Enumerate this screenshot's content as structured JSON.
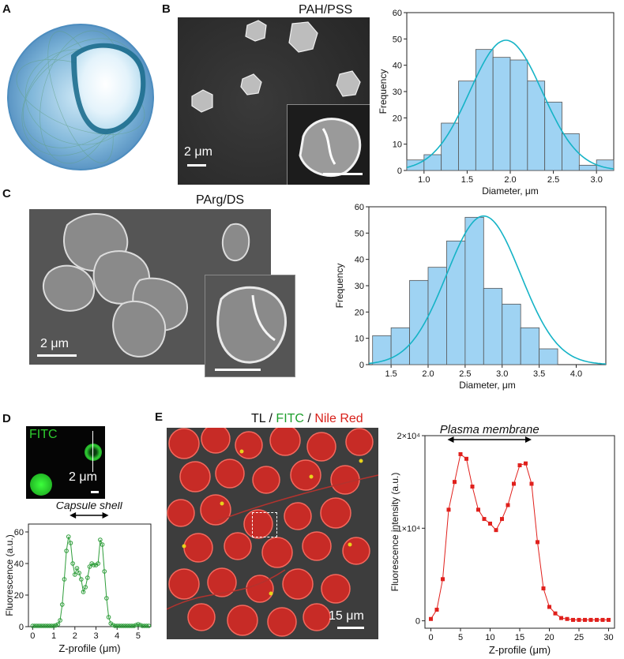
{
  "panels": {
    "A": {
      "letter": "A"
    },
    "B": {
      "letter": "B",
      "title": "PAH/PSS",
      "scale_label": "2 μm"
    },
    "C": {
      "letter": "C",
      "title": "PArg/DS",
      "scale_label": "2 μm"
    },
    "D": {
      "letter": "D",
      "channel_label": "FITC",
      "scale_label": "2 μm",
      "annotation": "Capsule shell"
    },
    "E": {
      "letter": "E",
      "scale_label": "15 μm",
      "annotation": "Plasma membrane",
      "channels": {
        "tl": "TL",
        "sep1": " / ",
        "fitc": "FITC",
        "sep2": " / ",
        "nile": "Nile Red"
      }
    }
  },
  "colors": {
    "bar_fill": "#9fd3f3",
    "fit_line": "#15b3c6",
    "green_profile": "#2e9d3a",
    "red_profile": "#e0201c"
  },
  "chart_data": [
    {
      "id": "hist_B",
      "type": "bar",
      "xlabel": "Diameter, μm",
      "ylabel": "Frequency",
      "xlim": [
        0.8,
        3.2
      ],
      "ylim": [
        0,
        60
      ],
      "xticks": [
        1.0,
        1.5,
        2.0,
        2.5,
        3.0
      ],
      "yticks": [
        0,
        10,
        20,
        30,
        40,
        50,
        60
      ],
      "bin_edges": [
        0.8,
        1.0,
        1.2,
        1.4,
        1.6,
        1.8,
        2.0,
        2.2,
        2.4,
        2.6,
        2.8,
        3.0,
        3.2
      ],
      "values": [
        4,
        6,
        18,
        34,
        46,
        43,
        42,
        34,
        26,
        14,
        2,
        4
      ],
      "fit": {
        "type": "gaussian",
        "mean": 1.95,
        "sd": 0.42,
        "peak": 49.5
      }
    },
    {
      "id": "hist_C",
      "type": "bar",
      "xlabel": "Diameter, μm",
      "ylabel": "Frequency",
      "xlim": [
        1.2,
        4.4
      ],
      "ylim": [
        0,
        60
      ],
      "xticks": [
        1.5,
        2.0,
        2.5,
        3.0,
        3.5,
        4.0
      ],
      "yticks": [
        0,
        10,
        20,
        30,
        40,
        50,
        60
      ],
      "bin_edges": [
        1.25,
        1.5,
        1.75,
        2.0,
        2.25,
        2.5,
        2.75,
        3.0,
        3.25,
        3.5,
        3.75,
        4.0,
        4.25
      ],
      "values": [
        11,
        14,
        32,
        37,
        47,
        56,
        29,
        23,
        14,
        6,
        0,
        0
      ],
      "fit": {
        "type": "gaussian",
        "mean": 2.75,
        "sd": 0.5,
        "peak": 56.5
      }
    },
    {
      "id": "profile_D",
      "type": "line",
      "xlabel": "Z-profile (μm)",
      "ylabel": "Fluorescence (a.u.)",
      "xlim": [
        -0.2,
        5.6
      ],
      "ylim": [
        0,
        65
      ],
      "xticks": [
        0,
        1,
        2,
        3,
        4,
        5
      ],
      "yticks": [
        0,
        20,
        40,
        60
      ],
      "x": [
        0,
        0.1,
        0.2,
        0.3,
        0.4,
        0.5,
        0.6,
        0.7,
        0.8,
        0.9,
        1.0,
        1.1,
        1.2,
        1.3,
        1.4,
        1.5,
        1.6,
        1.7,
        1.8,
        1.9,
        2.0,
        2.1,
        2.2,
        2.3,
        2.4,
        2.5,
        2.6,
        2.7,
        2.8,
        2.9,
        3.0,
        3.1,
        3.2,
        3.3,
        3.4,
        3.5,
        3.6,
        3.7,
        3.8,
        3.9,
        4.0,
        4.1,
        4.2,
        4.3,
        4.4,
        4.5,
        4.6,
        4.7,
        4.8,
        4.9,
        5.0,
        5.1,
        5.2,
        5.3,
        5.4,
        5.5
      ],
      "y": [
        0.5,
        0.5,
        0.5,
        0.5,
        0.5,
        0.5,
        0.5,
        0.5,
        0.5,
        0.5,
        0.5,
        0.8,
        1.5,
        4,
        14,
        30,
        48,
        57,
        53,
        40,
        33,
        37,
        34,
        30,
        22,
        25,
        31,
        38,
        40,
        39,
        39,
        40,
        55,
        52,
        35,
        18,
        6,
        2,
        1,
        0.5,
        0.5,
        0.5,
        0.5,
        0.5,
        0.5,
        0.5,
        0.5,
        0.5,
        0.5,
        1,
        1.5,
        1,
        0.5,
        0.5,
        0.5,
        0.5
      ]
    },
    {
      "id": "profile_E",
      "type": "line",
      "xlabel": "Z-profile (μm)",
      "ylabel": "Fluorescence intensity (a.u.)",
      "xlim": [
        -1,
        31
      ],
      "ylim": [
        -800,
        20000
      ],
      "xticks": [
        0,
        5,
        10,
        15,
        20,
        25,
        30
      ],
      "ytick_values": [
        0,
        10000,
        20000
      ],
      "ytick_labels": [
        "0",
        "1×10⁴",
        "2×10⁴"
      ],
      "x": [
        0,
        1,
        2,
        3,
        4,
        5,
        6,
        7,
        8,
        9,
        10,
        11,
        12,
        13,
        14,
        15,
        16,
        17,
        18,
        19,
        20,
        21,
        22,
        23,
        24,
        25,
        26,
        27,
        28,
        29,
        30
      ],
      "y": [
        200,
        1200,
        4500,
        12000,
        15000,
        18000,
        17500,
        14500,
        12000,
        11000,
        10500,
        9800,
        11000,
        12500,
        14800,
        16800,
        17000,
        14800,
        8500,
        3500,
        1500,
        800,
        300,
        200,
        100,
        100,
        100,
        100,
        100,
        100,
        100
      ]
    }
  ]
}
